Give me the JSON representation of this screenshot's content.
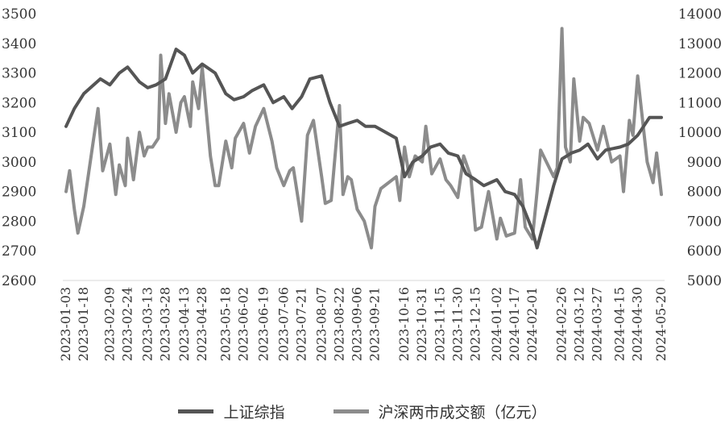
{
  "chart_data": {
    "type": "line",
    "colors": {
      "sse": "#555555",
      "turnover": "#8c8c8c"
    },
    "left_axis": {
      "ylim": [
        2600,
        3500
      ],
      "ticks": [
        "3500",
        "3400",
        "3300",
        "3200",
        "3100",
        "3000",
        "2900",
        "2800",
        "2700",
        "2600"
      ]
    },
    "right_axis": {
      "ylim": [
        5000,
        14000
      ],
      "ticks": [
        "14000",
        "13000",
        "12000",
        "11000",
        "10000",
        "9000",
        "8000",
        "7000",
        "6000",
        "5000"
      ]
    },
    "x_ticks": [
      "2023-01-03",
      "2023-01-18",
      "2023-02-09",
      "2023-02-24",
      "2023-03-13",
      "2023-03-28",
      "2023-04-13",
      "2023-04-28",
      "2023-05-18",
      "2023-06-02",
      "2023-06-19",
      "2023-07-06",
      "2023-07-21",
      "2023-08-07",
      "2023-08-22",
      "2023-09-06",
      "2023-09-21",
      "2023-10-16",
      "2023-10-31",
      "2023-11-15",
      "2023-11-30",
      "2023-12-15",
      "2024-01-02",
      "2024-01-17",
      "2024-02-01",
      "2024-02-26",
      "2024-03-12",
      "2024-03-27",
      "2024-04-15",
      "2024-04-30",
      "2024-05-20"
    ],
    "series": [
      {
        "name": "上证综指",
        "axis": "left",
        "x": [
          "2023-01-03",
          "2023-01-10",
          "2023-01-18",
          "2023-02-01",
          "2023-02-09",
          "2023-02-17",
          "2023-02-24",
          "2023-03-06",
          "2023-03-13",
          "2023-03-20",
          "2023-03-28",
          "2023-04-06",
          "2023-04-13",
          "2023-04-20",
          "2023-04-28",
          "2023-05-09",
          "2023-05-18",
          "2023-05-25",
          "2023-06-02",
          "2023-06-09",
          "2023-06-19",
          "2023-06-27",
          "2023-07-06",
          "2023-07-13",
          "2023-07-21",
          "2023-07-28",
          "2023-08-07",
          "2023-08-14",
          "2023-08-22",
          "2023-08-29",
          "2023-09-06",
          "2023-09-13",
          "2023-09-21",
          "2023-10-09",
          "2023-10-16",
          "2023-10-23",
          "2023-10-31",
          "2023-11-07",
          "2023-11-15",
          "2023-11-22",
          "2023-11-30",
          "2023-12-07",
          "2023-12-15",
          "2023-12-22",
          "2024-01-02",
          "2024-01-09",
          "2024-01-17",
          "2024-01-24",
          "2024-02-01",
          "2024-02-05",
          "2024-02-19",
          "2024-02-26",
          "2024-03-05",
          "2024-03-12",
          "2024-03-19",
          "2024-03-27",
          "2024-04-03",
          "2024-04-15",
          "2024-04-22",
          "2024-04-30",
          "2024-05-10",
          "2024-05-20"
        ],
        "values": [
          3120,
          3180,
          3230,
          3280,
          3260,
          3300,
          3320,
          3270,
          3250,
          3260,
          3280,
          3380,
          3360,
          3300,
          3330,
          3300,
          3230,
          3210,
          3220,
          3240,
          3260,
          3200,
          3220,
          3180,
          3220,
          3280,
          3290,
          3200,
          3120,
          3130,
          3140,
          3120,
          3120,
          3080,
          2950,
          3000,
          3020,
          3050,
          3060,
          3030,
          3020,
          2960,
          2940,
          2920,
          2940,
          2900,
          2890,
          2850,
          2770,
          2710,
          2920,
          3010,
          3030,
          3040,
          3060,
          3010,
          3040,
          3050,
          3060,
          3090,
          3150,
          3150
        ]
      },
      {
        "name": "沪深两市成交额（亿元）",
        "axis": "right",
        "x": [
          "2023-01-03",
          "2023-01-06",
          "2023-01-10",
          "2023-01-13",
          "2023-01-18",
          "2023-01-30",
          "2023-02-03",
          "2023-02-09",
          "2023-02-14",
          "2023-02-17",
          "2023-02-22",
          "2023-02-24",
          "2023-03-01",
          "2023-03-06",
          "2023-03-10",
          "2023-03-13",
          "2023-03-17",
          "2023-03-22",
          "2023-03-24",
          "2023-03-28",
          "2023-03-31",
          "2023-04-06",
          "2023-04-10",
          "2023-04-13",
          "2023-04-18",
          "2023-04-20",
          "2023-04-25",
          "2023-04-28",
          "2023-05-05",
          "2023-05-09",
          "2023-05-12",
          "2023-05-18",
          "2023-05-23",
          "2023-05-26",
          "2023-06-02",
          "2023-06-07",
          "2023-06-12",
          "2023-06-19",
          "2023-06-26",
          "2023-06-30",
          "2023-07-06",
          "2023-07-11",
          "2023-07-14",
          "2023-07-21",
          "2023-07-26",
          "2023-07-31",
          "2023-08-07",
          "2023-08-10",
          "2023-08-15",
          "2023-08-22",
          "2023-08-25",
          "2023-08-29",
          "2023-09-01",
          "2023-09-06",
          "2023-09-12",
          "2023-09-18",
          "2023-09-21",
          "2023-09-26",
          "2023-10-09",
          "2023-10-12",
          "2023-10-16",
          "2023-10-20",
          "2023-10-25",
          "2023-10-31",
          "2023-11-03",
          "2023-11-08",
          "2023-11-15",
          "2023-11-20",
          "2023-11-24",
          "2023-11-30",
          "2023-12-05",
          "2023-12-11",
          "2023-12-15",
          "2023-12-20",
          "2023-12-26",
          "2024-01-02",
          "2024-01-05",
          "2024-01-10",
          "2024-01-17",
          "2024-01-22",
          "2024-01-26",
          "2024-02-01",
          "2024-02-05",
          "2024-02-08",
          "2024-02-19",
          "2024-02-22",
          "2024-02-26",
          "2024-02-29",
          "2024-03-04",
          "2024-03-07",
          "2024-03-12",
          "2024-03-15",
          "2024-03-20",
          "2024-03-27",
          "2024-04-01",
          "2024-04-08",
          "2024-04-15",
          "2024-04-18",
          "2024-04-23",
          "2024-04-26",
          "2024-04-30",
          "2024-05-08",
          "2024-05-13",
          "2024-05-16",
          "2024-05-20"
        ],
        "values": [
          8000,
          8700,
          7400,
          6600,
          7500,
          10800,
          8700,
          9600,
          7900,
          8900,
          8200,
          9800,
          8400,
          10000,
          9200,
          9500,
          9500,
          9800,
          12600,
          10300,
          11300,
          10000,
          11000,
          11200,
          10200,
          11700,
          10800,
          12200,
          9200,
          8200,
          8200,
          9700,
          8800,
          9800,
          10300,
          9300,
          10200,
          10800,
          9700,
          8800,
          8200,
          8700,
          8800,
          7000,
          9900,
          10400,
          8500,
          7600,
          7700,
          10900,
          7900,
          8500,
          8400,
          7400,
          7000,
          6100,
          7500,
          8100,
          8500,
          7700,
          9500,
          8500,
          9200,
          9000,
          10200,
          8600,
          9100,
          8400,
          8200,
          7800,
          9200,
          8500,
          6700,
          6800,
          8000,
          6400,
          7100,
          6500,
          6600,
          8400,
          6800,
          6400,
          8000,
          9400,
          8500,
          8800,
          13500,
          9500,
          9000,
          11800,
          9700,
          10500,
          10300,
          9400,
          10200,
          9000,
          9200,
          8000,
          10400,
          9900,
          11900,
          9000,
          8300,
          9300,
          7900
        ]
      }
    ]
  }
}
